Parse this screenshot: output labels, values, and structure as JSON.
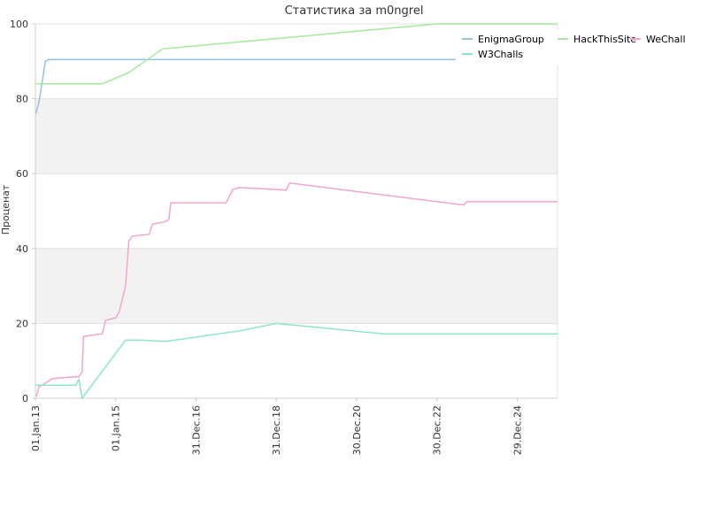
{
  "chart_data": {
    "type": "line",
    "title": "Статистика за m0ngrel",
    "xlabel": "",
    "ylabel": "Проценат",
    "ylim": [
      0,
      100
    ],
    "yticks": [
      "0",
      "20",
      "40",
      "60",
      "80",
      "100"
    ],
    "xrange": [
      "2013-01-01",
      "2025-12-31"
    ],
    "xticks": [
      {
        "date": "2013-01-01",
        "label": "01.Jan.13"
      },
      {
        "date": "2015-01-01",
        "label": "01.Jan.15"
      },
      {
        "date": "2016-12-31",
        "label": "31.Dec.16"
      },
      {
        "date": "2018-12-31",
        "label": "31.Dec.18"
      },
      {
        "date": "2020-12-30",
        "label": "30.Dec.20"
      },
      {
        "date": "2022-12-30",
        "label": "30.Dec.22"
      },
      {
        "date": "2024-12-29",
        "label": "29.Dec.24"
      }
    ],
    "grid": "horizontal bands",
    "legend_position": "top-right",
    "series": [
      {
        "name": "EnigmaGroup",
        "color": "#94c1e8",
        "points": [
          [
            "2013-01-05",
            76
          ],
          [
            "2013-02-01",
            79
          ],
          [
            "2013-03-01",
            84
          ],
          [
            "2013-04-01",
            90
          ],
          [
            "2013-05-01",
            90.5
          ],
          [
            "2023-07-01",
            90.5
          ]
        ]
      },
      {
        "name": "HackThisSite",
        "color": "#a6e89b",
        "points": [
          [
            "2013-01-05",
            84
          ],
          [
            "2014-09-01",
            84
          ],
          [
            "2015-05-01",
            87
          ],
          [
            "2016-03-01",
            93.3
          ],
          [
            "2023-01-01",
            100
          ],
          [
            "2025-12-31",
            100
          ]
        ]
      },
      {
        "name": "WeChall",
        "color": "#f1a5cf",
        "points": [
          [
            "2013-01-10",
            0.5
          ],
          [
            "2013-02-01",
            3
          ],
          [
            "2013-04-01",
            4
          ],
          [
            "2013-06-01",
            5.2
          ],
          [
            "2013-09-01",
            5.5
          ],
          [
            "2014-02-01",
            5.8
          ],
          [
            "2014-03-01",
            7
          ],
          [
            "2014-03-15",
            16.5
          ],
          [
            "2014-07-01",
            17
          ],
          [
            "2014-09-01",
            17.2
          ],
          [
            "2014-10-01",
            20.8
          ],
          [
            "2015-01-01",
            21.5
          ],
          [
            "2015-02-01",
            23
          ],
          [
            "2015-04-01",
            30
          ],
          [
            "2015-05-01",
            42
          ],
          [
            "2015-06-01",
            43.3
          ],
          [
            "2015-11-01",
            43.8
          ],
          [
            "2015-12-01",
            46.5
          ],
          [
            "2016-04-01",
            47.2
          ],
          [
            "2016-05-01",
            48
          ],
          [
            "2016-05-15",
            52.2
          ],
          [
            "2017-10-01",
            52.2
          ],
          [
            "2017-12-01",
            55.8
          ],
          [
            "2018-02-01",
            56.3
          ],
          [
            "2019-04-01",
            55.6
          ],
          [
            "2019-05-01",
            57.5
          ],
          [
            "2023-09-01",
            51.6
          ],
          [
            "2023-10-01",
            52.5
          ],
          [
            "2025-12-31",
            52.5
          ]
        ]
      },
      {
        "name": "W3Challs",
        "color": "#8ee5c8",
        "points": [
          [
            "2013-01-05",
            3.5
          ],
          [
            "2014-01-01",
            3.5
          ],
          [
            "2014-02-01",
            5
          ],
          [
            "2014-03-01",
            0
          ],
          [
            "2015-04-01",
            15.5
          ],
          [
            "2015-09-01",
            15.5
          ],
          [
            "2016-04-01",
            15.2
          ],
          [
            "2018-02-01",
            18
          ],
          [
            "2019-01-01",
            20
          ],
          [
            "2021-09-01",
            17.2
          ],
          [
            "2025-12-31",
            17.2
          ]
        ]
      }
    ]
  }
}
